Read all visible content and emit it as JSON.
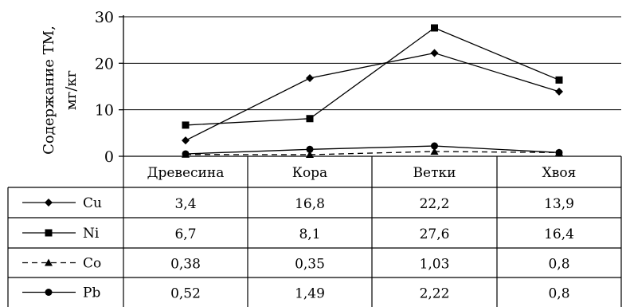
{
  "chart_data": {
    "type": "line",
    "title": "",
    "xlabel": "",
    "ylabel": [
      "Содержание  ТМ,",
      "мг/кг"
    ],
    "ylim": [
      0,
      30
    ],
    "yticks": [
      "0",
      "10",
      "20",
      "30"
    ],
    "grid": true,
    "categories": [
      "Древесина",
      "Кора",
      "Ветки",
      "Хвоя"
    ],
    "series": [
      {
        "name": "Cu",
        "values": [
          3.4,
          16.8,
          22.2,
          13.9
        ],
        "display": [
          "3,4",
          "16,8",
          "22,2",
          "13,9"
        ],
        "marker": "diamond",
        "dash": "solid"
      },
      {
        "name": "Ni",
        "values": [
          6.7,
          8.1,
          27.6,
          16.4
        ],
        "display": [
          "6,7",
          "8,1",
          "27,6",
          "16,4"
        ],
        "marker": "square",
        "dash": "solid"
      },
      {
        "name": "Co",
        "values": [
          0.38,
          0.35,
          1.03,
          0.8
        ],
        "display": [
          "0,38",
          "0,35",
          "1,03",
          "0,8"
        ],
        "marker": "triangle",
        "dash": "dashed"
      },
      {
        "name": "Pb",
        "values": [
          0.52,
          1.49,
          2.22,
          0.8
        ],
        "display": [
          "0,52",
          "1,49",
          "2,22",
          "0,8"
        ],
        "marker": "circle",
        "dash": "solid"
      }
    ],
    "data_table": true
  }
}
